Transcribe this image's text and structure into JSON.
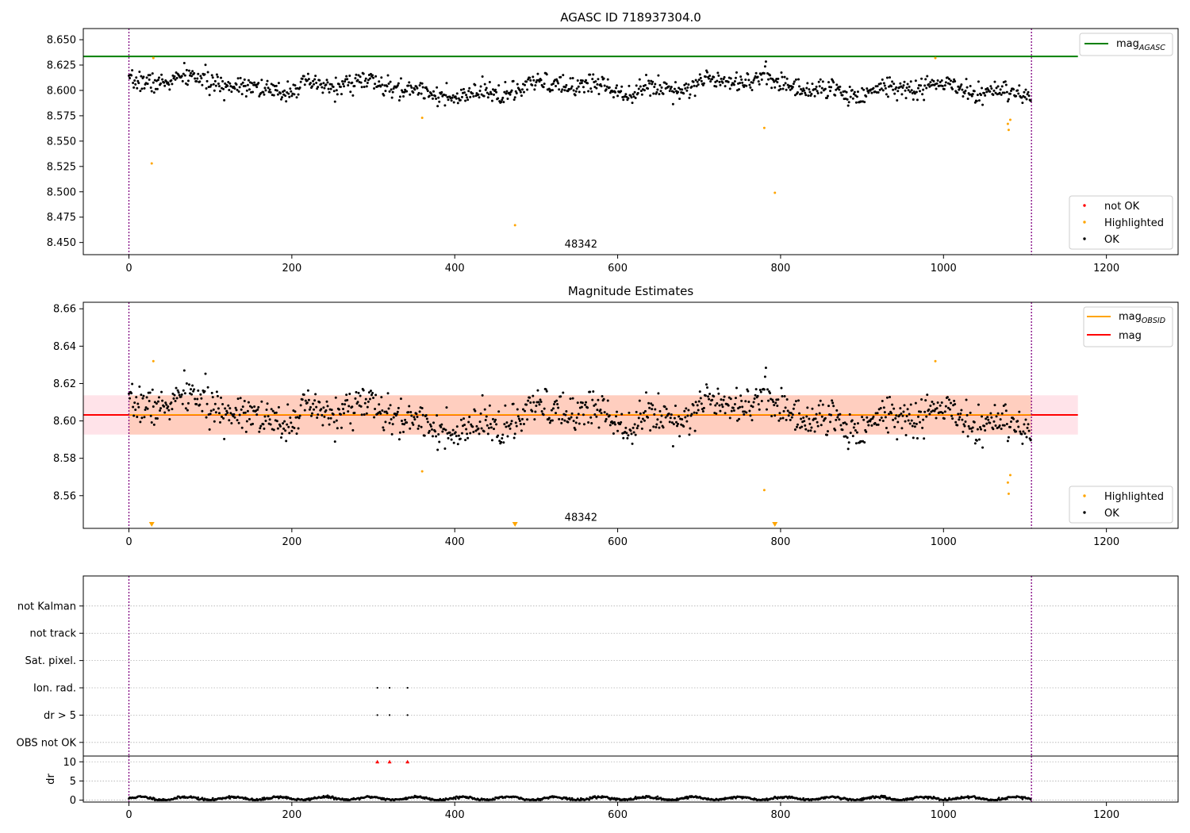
{
  "chart_data": [
    {
      "type": "scatter",
      "panel": "agasc",
      "title": "AGASC ID 718937304.0",
      "xlabel": "",
      "ylabel": "",
      "xlim": [
        -56,
        1288
      ],
      "ylim": [
        8.438,
        8.661
      ],
      "xticks": [
        0,
        200,
        400,
        600,
        800,
        1000,
        1200
      ],
      "yticks": [
        8.45,
        8.475,
        8.5,
        8.525,
        8.55,
        8.575,
        8.6,
        8.625,
        8.65
      ],
      "ytick_labels": [
        "8.450",
        "8.475",
        "8.500",
        "8.525",
        "8.550",
        "8.575",
        "8.600",
        "8.625",
        "8.650"
      ],
      "grid": false,
      "hlines": [
        {
          "name": "mag_AGASC",
          "value": 8.6335,
          "color": "#008000",
          "x_end": 1165
        }
      ],
      "vlines": [
        {
          "value": 0,
          "color": "#800080"
        },
        {
          "value": 1108,
          "color": "#800080"
        }
      ],
      "annotations": [
        {
          "text": "48342",
          "x": 555,
          "y": 8.445
        }
      ],
      "legend_lines": [
        {
          "label": "mag",
          "sub": "AGASC",
          "color": "#008000"
        }
      ],
      "legend_markers": [
        {
          "label": "not OK",
          "color": "#ff0000"
        },
        {
          "label": "Highlighted",
          "color": "#ffa500"
        },
        {
          "label": "OK",
          "color": "#000000"
        }
      ],
      "legend_placement": [
        "top-right",
        "bottom-right"
      ],
      "ok_points": {
        "color": "#000000",
        "n": 1108,
        "x_start": 0,
        "x_step": 1,
        "mean": 8.603,
        "spread": 0.009,
        "seed": 7
      },
      "highlighted_points": {
        "color": "#ffa500",
        "x": [
          28,
          30,
          360,
          474,
          780,
          793,
          990,
          1079,
          1080,
          1082
        ],
        "y": [
          8.528,
          8.632,
          8.573,
          8.467,
          8.563,
          8.499,
          8.632,
          8.567,
          8.561,
          8.571
        ]
      }
    },
    {
      "type": "scatter",
      "panel": "magnitude",
      "title": "Magnitude Estimates",
      "xlabel": "",
      "ylabel": "",
      "xlim": [
        -56,
        1288
      ],
      "ylim": [
        8.5425,
        8.6635
      ],
      "xticks": [
        0,
        200,
        400,
        600,
        800,
        1000,
        1200
      ],
      "yticks": [
        8.56,
        8.58,
        8.6,
        8.62,
        8.64,
        8.66
      ],
      "ytick_labels": [
        "8.56",
        "8.58",
        "8.60",
        "8.62",
        "8.64",
        "8.66"
      ],
      "grid": false,
      "bands": [
        {
          "y0": 8.5927,
          "y1": 8.6137,
          "x0": -56,
          "x1": 1165,
          "color": "#ff8fa8",
          "alpha": 0.25
        },
        {
          "y0": 8.5927,
          "y1": 8.6137,
          "x0": 0,
          "x1": 1108,
          "color": "#ffa060",
          "alpha": 0.3
        }
      ],
      "hlines": [
        {
          "name": "mag",
          "value": 8.6032,
          "color": "#ff0000",
          "x_end": 1165
        },
        {
          "name": "mag_OBSID",
          "value": 8.6033,
          "color": "#ffa500",
          "x_start": 0,
          "x_end": 1108
        }
      ],
      "vlines": [
        {
          "value": 0,
          "color": "#800080"
        },
        {
          "value": 1108,
          "color": "#800080"
        }
      ],
      "annotations": [
        {
          "text": "48342",
          "x": 555,
          "y": 8.5465
        }
      ],
      "legend_lines": [
        {
          "label": "mag",
          "sub": "OBSID",
          "color": "#ffa500"
        },
        {
          "label": "mag",
          "sub": "",
          "color": "#ff0000"
        }
      ],
      "legend_markers": [
        {
          "label": "Highlighted",
          "color": "#ffa500"
        },
        {
          "label": "OK",
          "color": "#000000"
        }
      ],
      "legend_placement": [
        "top-right",
        "bottom-right"
      ],
      "ok_points": {
        "color": "#000000",
        "n": 1108,
        "x_start": 0,
        "x_step": 1,
        "mean": 8.603,
        "spread": 0.009,
        "seed": 7
      },
      "highlighted_points": {
        "color": "#ffa500",
        "x": [
          30,
          360,
          780,
          990,
          1079,
          1080,
          1082
        ],
        "y": [
          8.632,
          8.573,
          8.563,
          8.632,
          8.567,
          8.561,
          8.571
        ]
      },
      "below_range_markers": {
        "color": "#ffa500",
        "x": [
          28,
          474,
          793
        ]
      }
    },
    {
      "type": "scatter",
      "panel": "flags",
      "title": "",
      "xlim": [
        -56,
        1288
      ],
      "ylim": [
        -0.5,
        6.1
      ],
      "category_labels": [
        "not Kalman",
        "not track",
        "Sat. pixel.",
        "Ion. rad.",
        "dr > 5",
        "OBS not OK"
      ],
      "category_values": [
        5,
        4,
        3,
        2,
        1,
        0
      ],
      "grid": "horizontal dotted",
      "vlines": [
        {
          "value": 0,
          "color": "#800080"
        },
        {
          "value": 1108,
          "color": "#800080"
        }
      ],
      "flag_points": {
        "color": "#000000",
        "x": [
          305,
          320,
          342,
          305,
          320,
          342
        ],
        "y": [
          2,
          2,
          2,
          1,
          1,
          1
        ]
      }
    },
    {
      "type": "scatter",
      "panel": "dr",
      "title": "",
      "xlabel": "",
      "ylabel": "dr",
      "xlim": [
        -56,
        1288
      ],
      "ylim": [
        -0.5,
        11.5
      ],
      "xticks": [
        0,
        200,
        400,
        600,
        800,
        1000,
        1200
      ],
      "yticks": [
        0,
        5,
        10
      ],
      "ytick_labels": [
        "0",
        "5",
        "10"
      ],
      "grid": "horizontal dotted",
      "vlines": [
        {
          "value": 0,
          "color": "#800080"
        },
        {
          "value": 1108,
          "color": "#800080"
        }
      ],
      "dr_points": {
        "color": "#000000",
        "n": 1108,
        "mean": 0.45,
        "spread": 0.4,
        "seed": 11
      },
      "above_range_markers": {
        "color": "#ff0000",
        "x": [
          305,
          320,
          342
        ],
        "y": 10
      }
    }
  ]
}
